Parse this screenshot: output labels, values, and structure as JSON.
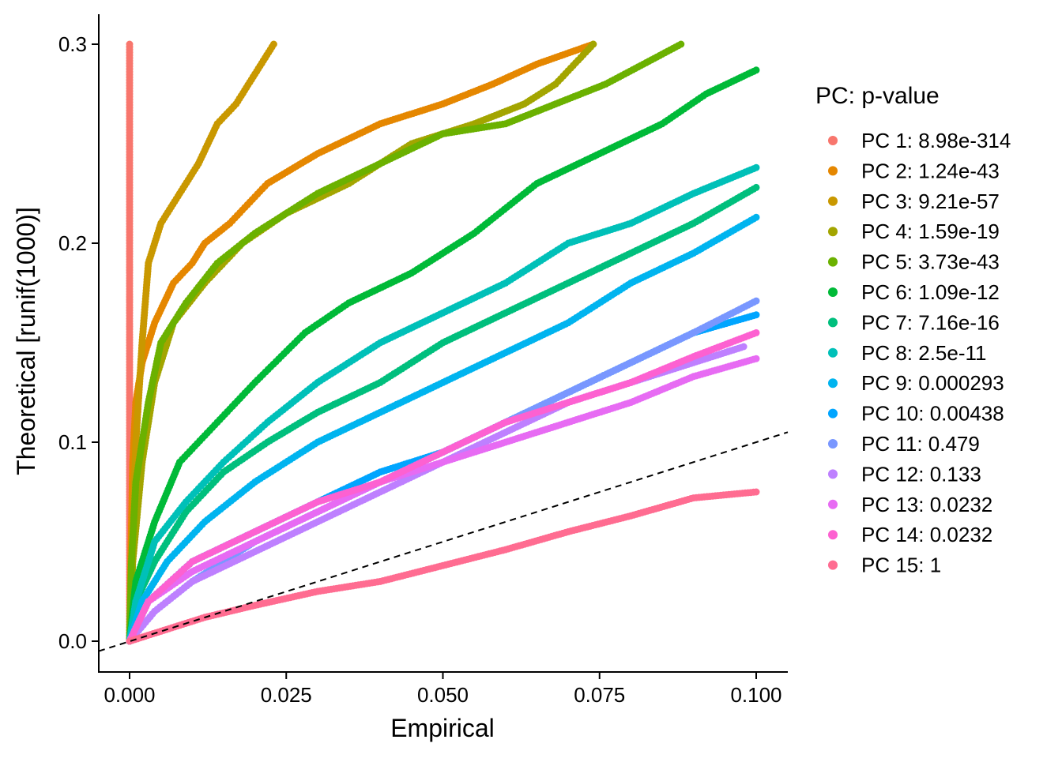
{
  "chart_data": {
    "type": "scatter",
    "title": "",
    "xlabel": "Empirical",
    "ylabel": "Theoretical [runif(1000)]",
    "xlim": [
      -0.005,
      0.105
    ],
    "ylim": [
      -0.015,
      0.315
    ],
    "x_ticks": [
      0.0,
      0.025,
      0.05,
      0.075,
      0.1
    ],
    "x_tick_labels": [
      "0.000",
      "0.025",
      "0.050",
      "0.075",
      "0.100"
    ],
    "y_ticks": [
      0.0,
      0.1,
      0.2,
      0.3
    ],
    "y_tick_labels": [
      "0.0",
      "0.1",
      "0.2",
      "0.3"
    ],
    "grid": false,
    "reference_line": {
      "type": "identity",
      "slope": 1,
      "intercept": 0,
      "style": "dashed"
    },
    "legend": {
      "title": "PC: p-value",
      "position": "right"
    },
    "series": [
      {
        "name": "PC 1: 8.98e-314",
        "color": "#F8766D",
        "points": [
          [
            0.0,
            0.0
          ],
          [
            0.0,
            0.05
          ],
          [
            0.0,
            0.1
          ],
          [
            0.0,
            0.15
          ],
          [
            0.0,
            0.2
          ],
          [
            0.0,
            0.25
          ],
          [
            0.0,
            0.3
          ]
        ]
      },
      {
        "name": "PC 2: 1.24e-43",
        "color": "#E58700",
        "points": [
          [
            0.0,
            0.0
          ],
          [
            0.0002,
            0.04
          ],
          [
            0.0005,
            0.09
          ],
          [
            0.001,
            0.12
          ],
          [
            0.002,
            0.14
          ],
          [
            0.004,
            0.16
          ],
          [
            0.007,
            0.18
          ],
          [
            0.01,
            0.19
          ],
          [
            0.012,
            0.2
          ],
          [
            0.016,
            0.21
          ],
          [
            0.022,
            0.23
          ],
          [
            0.03,
            0.245
          ],
          [
            0.04,
            0.26
          ],
          [
            0.05,
            0.27
          ],
          [
            0.058,
            0.28
          ],
          [
            0.065,
            0.29
          ],
          [
            0.074,
            0.3
          ]
        ]
      },
      {
        "name": "PC 3: 9.21e-57",
        "color": "#C99800",
        "points": [
          [
            0.0,
            0.0
          ],
          [
            0.0005,
            0.05
          ],
          [
            0.001,
            0.1
          ],
          [
            0.002,
            0.15
          ],
          [
            0.003,
            0.19
          ],
          [
            0.005,
            0.21
          ],
          [
            0.008,
            0.225
          ],
          [
            0.011,
            0.24
          ],
          [
            0.014,
            0.26
          ],
          [
            0.017,
            0.27
          ],
          [
            0.02,
            0.285
          ],
          [
            0.023,
            0.3
          ]
        ]
      },
      {
        "name": "PC 4: 1.59e-19",
        "color": "#A3A500",
        "points": [
          [
            0.0,
            0.0
          ],
          [
            0.0005,
            0.04
          ],
          [
            0.002,
            0.09
          ],
          [
            0.004,
            0.13
          ],
          [
            0.007,
            0.16
          ],
          [
            0.012,
            0.18
          ],
          [
            0.018,
            0.2
          ],
          [
            0.025,
            0.215
          ],
          [
            0.035,
            0.23
          ],
          [
            0.045,
            0.25
          ],
          [
            0.055,
            0.26
          ],
          [
            0.063,
            0.27
          ],
          [
            0.068,
            0.28
          ],
          [
            0.074,
            0.3
          ]
        ]
      },
      {
        "name": "PC 5: 3.73e-43",
        "color": "#6BB100",
        "points": [
          [
            0.0,
            0.0
          ],
          [
            0.0003,
            0.04
          ],
          [
            0.001,
            0.08
          ],
          [
            0.003,
            0.12
          ],
          [
            0.005,
            0.15
          ],
          [
            0.009,
            0.17
          ],
          [
            0.014,
            0.19
          ],
          [
            0.02,
            0.205
          ],
          [
            0.03,
            0.225
          ],
          [
            0.04,
            0.24
          ],
          [
            0.05,
            0.255
          ],
          [
            0.06,
            0.26
          ],
          [
            0.068,
            0.27
          ],
          [
            0.076,
            0.28
          ],
          [
            0.082,
            0.29
          ],
          [
            0.088,
            0.3
          ]
        ]
      },
      {
        "name": "PC 6: 1.09e-12",
        "color": "#00BA38",
        "points": [
          [
            0.0,
            0.0
          ],
          [
            0.001,
            0.03
          ],
          [
            0.004,
            0.06
          ],
          [
            0.008,
            0.09
          ],
          [
            0.014,
            0.11
          ],
          [
            0.02,
            0.13
          ],
          [
            0.028,
            0.155
          ],
          [
            0.035,
            0.17
          ],
          [
            0.045,
            0.185
          ],
          [
            0.055,
            0.205
          ],
          [
            0.065,
            0.23
          ],
          [
            0.075,
            0.245
          ],
          [
            0.085,
            0.26
          ],
          [
            0.092,
            0.275
          ],
          [
            0.1,
            0.287
          ]
        ]
      },
      {
        "name": "PC 7: 7.16e-16",
        "color": "#00BF7D",
        "points": [
          [
            0.0,
            0.0
          ],
          [
            0.001,
            0.02
          ],
          [
            0.004,
            0.04
          ],
          [
            0.009,
            0.065
          ],
          [
            0.015,
            0.085
          ],
          [
            0.022,
            0.1
          ],
          [
            0.03,
            0.115
          ],
          [
            0.04,
            0.13
          ],
          [
            0.05,
            0.15
          ],
          [
            0.06,
            0.165
          ],
          [
            0.07,
            0.18
          ],
          [
            0.08,
            0.195
          ],
          [
            0.09,
            0.21
          ],
          [
            0.1,
            0.228
          ]
        ]
      },
      {
        "name": "PC 8: 2.5e-11",
        "color": "#00C0B8",
        "points": [
          [
            0.0,
            0.0
          ],
          [
            0.001,
            0.02
          ],
          [
            0.004,
            0.05
          ],
          [
            0.009,
            0.07
          ],
          [
            0.015,
            0.09
          ],
          [
            0.022,
            0.11
          ],
          [
            0.03,
            0.13
          ],
          [
            0.04,
            0.15
          ],
          [
            0.05,
            0.165
          ],
          [
            0.06,
            0.18
          ],
          [
            0.07,
            0.2
          ],
          [
            0.08,
            0.21
          ],
          [
            0.09,
            0.225
          ],
          [
            0.1,
            0.238
          ]
        ]
      },
      {
        "name": "PC 9: 0.000293",
        "color": "#00B4EF",
        "points": [
          [
            0.0,
            0.0
          ],
          [
            0.002,
            0.02
          ],
          [
            0.006,
            0.04
          ],
          [
            0.012,
            0.06
          ],
          [
            0.02,
            0.08
          ],
          [
            0.03,
            0.1
          ],
          [
            0.04,
            0.115
          ],
          [
            0.05,
            0.13
          ],
          [
            0.06,
            0.145
          ],
          [
            0.07,
            0.16
          ],
          [
            0.08,
            0.18
          ],
          [
            0.09,
            0.195
          ],
          [
            0.1,
            0.213
          ]
        ]
      },
      {
        "name": "PC 10: 0.00438",
        "color": "#00A5FF",
        "points": [
          [
            0.0,
            0.0
          ],
          [
            0.003,
            0.02
          ],
          [
            0.01,
            0.04
          ],
          [
            0.02,
            0.055
          ],
          [
            0.03,
            0.07
          ],
          [
            0.04,
            0.085
          ],
          [
            0.05,
            0.095
          ],
          [
            0.06,
            0.11
          ],
          [
            0.07,
            0.125
          ],
          [
            0.08,
            0.14
          ],
          [
            0.09,
            0.155
          ],
          [
            0.1,
            0.164
          ]
        ]
      },
      {
        "name": "PC 11: 0.479",
        "color": "#7997FF",
        "points": [
          [
            0.0,
            0.0
          ],
          [
            0.004,
            0.015
          ],
          [
            0.01,
            0.03
          ],
          [
            0.02,
            0.05
          ],
          [
            0.03,
            0.065
          ],
          [
            0.04,
            0.08
          ],
          [
            0.05,
            0.095
          ],
          [
            0.06,
            0.11
          ],
          [
            0.07,
            0.125
          ],
          [
            0.08,
            0.14
          ],
          [
            0.09,
            0.155
          ],
          [
            0.1,
            0.171
          ]
        ]
      },
      {
        "name": "PC 12: 0.133",
        "color": "#BE80FF",
        "points": [
          [
            0.0,
            0.0
          ],
          [
            0.004,
            0.015
          ],
          [
            0.01,
            0.03
          ],
          [
            0.02,
            0.045
          ],
          [
            0.03,
            0.06
          ],
          [
            0.04,
            0.075
          ],
          [
            0.05,
            0.09
          ],
          [
            0.06,
            0.105
          ],
          [
            0.07,
            0.12
          ],
          [
            0.08,
            0.13
          ],
          [
            0.09,
            0.14
          ],
          [
            0.098,
            0.148
          ]
        ]
      },
      {
        "name": "PC 13: 0.0232",
        "color": "#E76BF3",
        "points": [
          [
            0.0,
            0.0
          ],
          [
            0.003,
            0.02
          ],
          [
            0.01,
            0.035
          ],
          [
            0.02,
            0.05
          ],
          [
            0.03,
            0.065
          ],
          [
            0.04,
            0.08
          ],
          [
            0.05,
            0.09
          ],
          [
            0.06,
            0.1
          ],
          [
            0.07,
            0.11
          ],
          [
            0.08,
            0.12
          ],
          [
            0.09,
            0.133
          ],
          [
            0.1,
            0.142
          ]
        ]
      },
      {
        "name": "PC 14: 0.0232",
        "color": "#FD61D1",
        "points": [
          [
            0.0,
            0.0
          ],
          [
            0.003,
            0.02
          ],
          [
            0.01,
            0.04
          ],
          [
            0.02,
            0.055
          ],
          [
            0.03,
            0.07
          ],
          [
            0.04,
            0.08
          ],
          [
            0.05,
            0.095
          ],
          [
            0.06,
            0.11
          ],
          [
            0.07,
            0.12
          ],
          [
            0.08,
            0.13
          ],
          [
            0.09,
            0.143
          ],
          [
            0.1,
            0.155
          ]
        ]
      },
      {
        "name": "PC 15: 1",
        "color": "#FF6C91",
        "points": [
          [
            0.0,
            0.0
          ],
          [
            0.005,
            0.005
          ],
          [
            0.012,
            0.012
          ],
          [
            0.02,
            0.018
          ],
          [
            0.03,
            0.025
          ],
          [
            0.04,
            0.03
          ],
          [
            0.05,
            0.038
          ],
          [
            0.06,
            0.046
          ],
          [
            0.07,
            0.055
          ],
          [
            0.08,
            0.063
          ],
          [
            0.09,
            0.072
          ],
          [
            0.1,
            0.075
          ]
        ]
      }
    ]
  }
}
